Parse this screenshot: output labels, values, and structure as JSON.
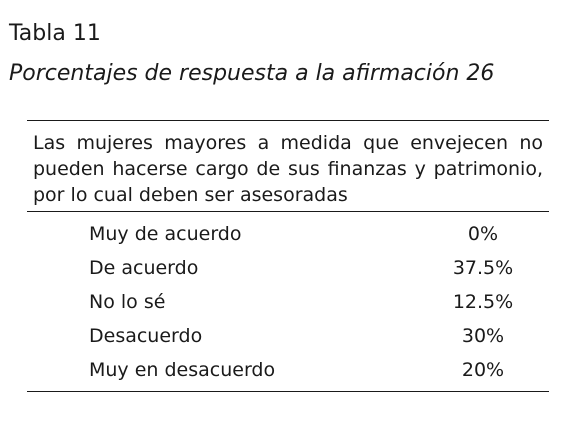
{
  "table_number": "Tabla 11",
  "caption": "Porcentajes de respuesta a la afirmación 26",
  "statement": "Las mujeres mayores a medida que envejecen no pueden hacerse cargo de sus finanzas y patrimonio, por lo cual deben ser asesoradas",
  "rows": [
    {
      "label": "Muy de acuerdo",
      "value": "0%"
    },
    {
      "label": "De acuerdo",
      "value": "37.5%"
    },
    {
      "label": "No lo sé",
      "value": "12.5%"
    },
    {
      "label": "Desacuerdo",
      "value": "30%"
    },
    {
      "label": "Muy en desacuerdo",
      "value": "20%"
    }
  ]
}
